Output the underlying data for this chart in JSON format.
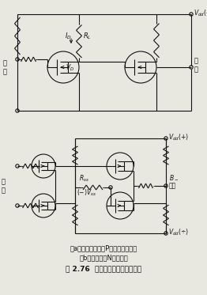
{
  "title": "图 2.76  直流耦合电路的基本形式",
  "caption_a": "（a）单端型电路（P沟道增强型时）",
  "caption_b": "（b）差分型（N沟道时）",
  "bg_color": "#e8e8e0",
  "line_color": "#111111",
  "text_color": "#111111",
  "fig_width": 2.62,
  "fig_height": 3.73,
  "dpi": 100
}
